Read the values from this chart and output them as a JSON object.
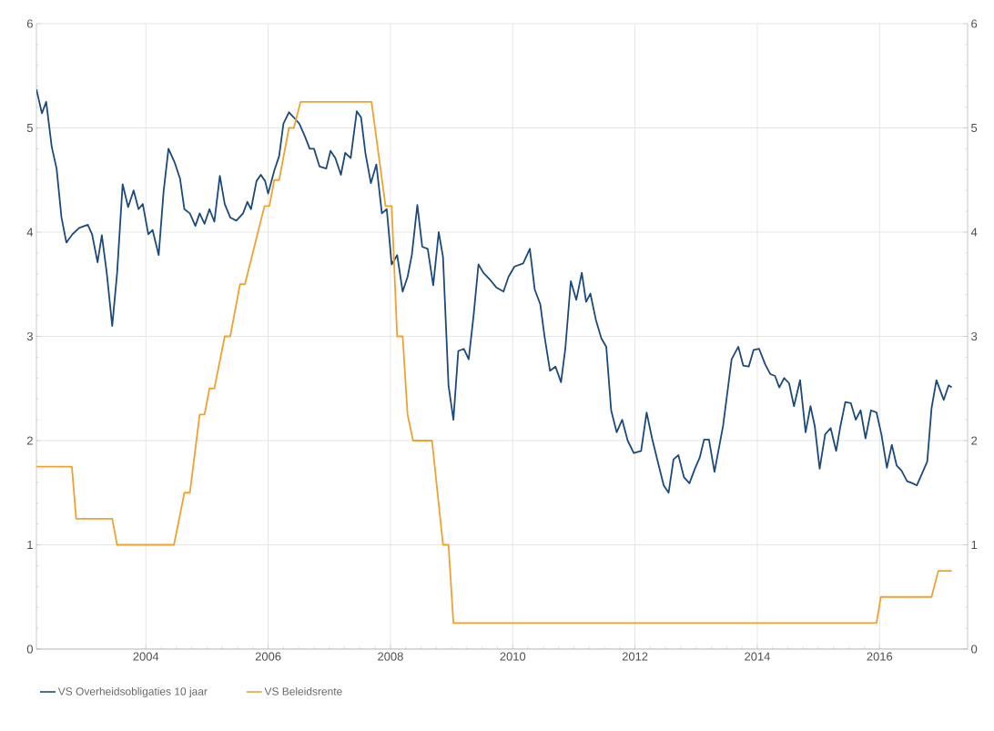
{
  "chart_data": {
    "type": "line",
    "xlim": [
      2002.21,
      2017.44
    ],
    "xticks": [
      2004,
      2006,
      2008,
      2010,
      2012,
      2014,
      2016
    ],
    "ylim": [
      0,
      6
    ],
    "yticks": [
      0,
      1,
      2,
      3,
      4,
      5,
      6
    ],
    "y2lim": [
      0,
      6
    ],
    "y2ticks": [
      0,
      1,
      2,
      3,
      4,
      5,
      6
    ],
    "grid": true,
    "legend": "bottom left",
    "series": [
      {
        "name": "VS Overheidsobligaties 10 jaar",
        "color": "#1b4a7a",
        "x": [
          2002.21,
          2002.3,
          2002.37,
          2002.46,
          2002.54,
          2002.62,
          2002.7,
          2002.8,
          2002.91,
          2003.05,
          2003.12,
          2003.21,
          2003.28,
          2003.36,
          2003.45,
          2003.53,
          2003.62,
          2003.71,
          2003.8,
          2003.88,
          2003.95,
          2004.04,
          2004.11,
          2004.21,
          2004.29,
          2004.37,
          2004.47,
          2004.56,
          2004.63,
          2004.72,
          2004.81,
          2004.88,
          2004.96,
          2005.04,
          2005.12,
          2005.21,
          2005.29,
          2005.38,
          2005.48,
          2005.59,
          2005.66,
          2005.72,
          2005.81,
          2005.88,
          2005.95,
          2006.0,
          2006.1,
          2006.18,
          2006.25,
          2006.34,
          2006.42,
          2006.51,
          2006.6,
          2006.68,
          2006.75,
          2006.84,
          2006.95,
          2007.02,
          2007.1,
          2007.19,
          2007.26,
          2007.35,
          2007.45,
          2007.52,
          2007.59,
          2007.68,
          2007.77,
          2007.86,
          2007.94,
          2008.02,
          2008.11,
          2008.2,
          2008.28,
          2008.35,
          2008.44,
          2008.52,
          2008.61,
          2008.7,
          2008.79,
          2008.86,
          2008.95,
          2009.03,
          2009.11,
          2009.2,
          2009.28,
          2009.36,
          2009.44,
          2009.52,
          2009.62,
          2009.73,
          2009.85,
          2009.93,
          2010.03,
          2010.17,
          2010.28,
          2010.36,
          2010.45,
          2010.52,
          2010.61,
          2010.7,
          2010.79,
          2010.86,
          2010.95,
          2011.04,
          2011.13,
          2011.2,
          2011.27,
          2011.36,
          2011.45,
          2011.53,
          2011.61,
          2011.7,
          2011.79,
          2011.88,
          2011.98,
          2012.1,
          2012.19,
          2012.28,
          2012.38,
          2012.47,
          2012.55,
          2012.63,
          2012.71,
          2012.8,
          2012.89,
          2012.98,
          2013.06,
          2013.13,
          2013.21,
          2013.3,
          2013.44,
          2013.53,
          2013.58,
          2013.69,
          2013.77,
          2013.86,
          2013.94,
          2014.03,
          2014.13,
          2014.21,
          2014.29,
          2014.36,
          2014.44,
          2014.52,
          2014.6,
          2014.7,
          2014.79,
          2014.87,
          2014.94,
          2015.02,
          2015.11,
          2015.2,
          2015.29,
          2015.36,
          2015.44,
          2015.53,
          2015.61,
          2015.69,
          2015.77,
          2015.86,
          2015.95,
          2016.03,
          2016.12,
          2016.2,
          2016.28,
          2016.36,
          2016.45,
          2016.54,
          2016.61,
          2016.7,
          2016.78,
          2016.85,
          2016.93,
          2017.05,
          2017.13,
          2017.18
        ],
        "values": [
          5.37,
          5.14,
          5.25,
          4.82,
          4.61,
          4.14,
          3.9,
          3.98,
          4.04,
          4.07,
          3.98,
          3.71,
          3.97,
          3.61,
          3.1,
          3.61,
          4.46,
          4.24,
          4.4,
          4.22,
          4.27,
          3.98,
          4.02,
          3.78,
          4.39,
          4.8,
          4.67,
          4.51,
          4.22,
          4.18,
          4.06,
          4.18,
          4.08,
          4.22,
          4.1,
          4.54,
          4.27,
          4.14,
          4.11,
          4.18,
          4.29,
          4.22,
          4.49,
          4.55,
          4.49,
          4.37,
          4.59,
          4.73,
          5.04,
          5.15,
          5.1,
          5.04,
          4.92,
          4.8,
          4.8,
          4.63,
          4.61,
          4.78,
          4.71,
          4.55,
          4.76,
          4.71,
          5.16,
          5.1,
          4.76,
          4.47,
          4.65,
          4.18,
          4.22,
          3.69,
          3.78,
          3.43,
          3.57,
          3.78,
          4.26,
          3.86,
          3.84,
          3.49,
          4.0,
          3.76,
          2.53,
          2.2,
          2.86,
          2.88,
          2.78,
          3.2,
          3.69,
          3.61,
          3.55,
          3.47,
          3.43,
          3.57,
          3.67,
          3.7,
          3.84,
          3.45,
          3.31,
          3.0,
          2.67,
          2.71,
          2.56,
          2.88,
          3.53,
          3.35,
          3.61,
          3.33,
          3.41,
          3.16,
          2.98,
          2.9,
          2.29,
          2.08,
          2.2,
          2.0,
          1.88,
          1.9,
          2.27,
          2.02,
          1.78,
          1.57,
          1.5,
          1.82,
          1.86,
          1.65,
          1.59,
          1.73,
          1.84,
          2.01,
          2.01,
          1.7,
          2.14,
          2.55,
          2.78,
          2.9,
          2.72,
          2.71,
          2.87,
          2.88,
          2.73,
          2.64,
          2.62,
          2.51,
          2.6,
          2.55,
          2.33,
          2.58,
          2.08,
          2.33,
          2.14,
          1.73,
          2.06,
          2.12,
          1.9,
          2.14,
          2.37,
          2.36,
          2.2,
          2.29,
          2.02,
          2.29,
          2.27,
          2.06,
          1.74,
          1.96,
          1.76,
          1.71,
          1.61,
          1.59,
          1.57,
          1.69,
          1.8,
          2.31,
          2.58,
          2.39,
          2.53,
          2.51
        ]
      },
      {
        "name": "VS Beleidsrente",
        "color": "#f0a22e",
        "x": [
          2002.21,
          2002.79,
          2002.86,
          2003.45,
          2003.53,
          2004.46,
          2004.63,
          2004.72,
          2004.88,
          2004.96,
          2005.04,
          2005.12,
          2005.29,
          2005.38,
          2005.54,
          2005.62,
          2005.94,
          2006.02,
          2006.1,
          2006.18,
          2006.34,
          2006.42,
          2006.53,
          2007.69,
          2007.92,
          2008.02,
          2008.11,
          2008.2,
          2008.28,
          2008.37,
          2008.68,
          2008.86,
          2008.95,
          2009.03,
          2015.95,
          2016.02,
          2016.85,
          2016.96,
          2017.18
        ],
        "values": [
          1.75,
          1.75,
          1.25,
          1.25,
          1.0,
          1.0,
          1.5,
          1.5,
          2.25,
          2.25,
          2.5,
          2.5,
          3.0,
          3.0,
          3.5,
          3.5,
          4.25,
          4.25,
          4.5,
          4.5,
          5.0,
          5.0,
          5.25,
          5.25,
          4.25,
          4.25,
          3.0,
          3.0,
          2.25,
          2.0,
          2.0,
          1.0,
          1.0,
          0.25,
          0.25,
          0.5,
          0.5,
          0.75,
          0.75
        ]
      }
    ]
  }
}
